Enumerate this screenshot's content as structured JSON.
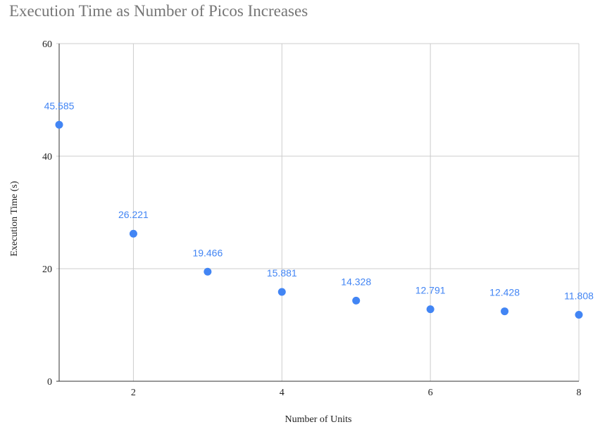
{
  "chart_data": {
    "type": "scatter",
    "title": "Execution Time as Number of Picos Increases",
    "xlabel": "Number of Units",
    "ylabel": "Execution Time (s)",
    "xlim": [
      1,
      8
    ],
    "ylim": [
      0,
      60
    ],
    "xticks": [
      2,
      4,
      6,
      8
    ],
    "yticks": [
      0,
      20,
      40,
      60
    ],
    "grid": true,
    "legend": "none",
    "points": [
      {
        "x": 1,
        "y": 45.585,
        "label": "45.585"
      },
      {
        "x": 2,
        "y": 26.221,
        "label": "26.221"
      },
      {
        "x": 3,
        "y": 19.466,
        "label": "19.466"
      },
      {
        "x": 4,
        "y": 15.881,
        "label": "15.881"
      },
      {
        "x": 5,
        "y": 14.328,
        "label": "14.328"
      },
      {
        "x": 6,
        "y": 12.791,
        "label": "12.791"
      },
      {
        "x": 7,
        "y": 12.428,
        "label": "12.428"
      },
      {
        "x": 8,
        "y": 11.808,
        "label": "11.808"
      }
    ],
    "colors": {
      "point": "#4285f4",
      "label": "#4285f4",
      "grid": "#cccccc",
      "axis": "#333333"
    }
  }
}
